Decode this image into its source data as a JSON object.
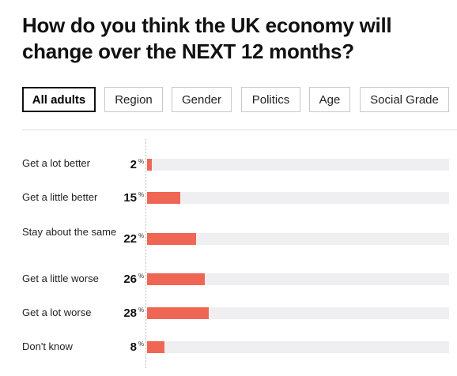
{
  "title": "How do you think the UK economy will change over the NEXT 12 months?",
  "tabs": [
    {
      "label": "All adults",
      "active": true
    },
    {
      "label": "Region",
      "active": false
    },
    {
      "label": "Gender",
      "active": false
    },
    {
      "label": "Politics",
      "active": false
    },
    {
      "label": "Age",
      "active": false
    },
    {
      "label": "Social Grade",
      "active": false
    }
  ],
  "percent_symbol": "%",
  "colors": {
    "bar": "#ef6654",
    "track": "#efeff2",
    "text": "#111111"
  },
  "chart_data": {
    "type": "bar",
    "orientation": "horizontal",
    "categories": [
      "Get a lot better",
      "Get a little better",
      "Stay about the same",
      "Get a little worse",
      "Get a lot worse",
      "Don't know"
    ],
    "values": [
      2,
      15,
      22,
      26,
      28,
      8
    ],
    "unit": "%",
    "xlim": [
      0,
      100
    ]
  }
}
